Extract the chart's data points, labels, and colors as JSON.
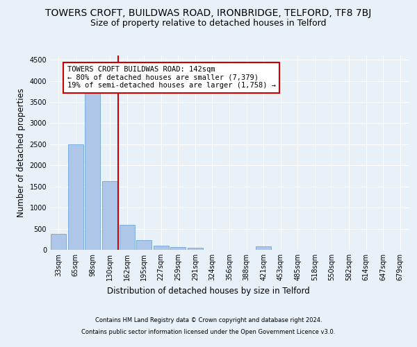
{
  "title": "TOWERS CROFT, BUILDWAS ROAD, IRONBRIDGE, TELFORD, TF8 7BJ",
  "subtitle": "Size of property relative to detached houses in Telford",
  "xlabel": "Distribution of detached houses by size in Telford",
  "ylabel": "Number of detached properties",
  "categories": [
    "33sqm",
    "65sqm",
    "98sqm",
    "130sqm",
    "162sqm",
    "195sqm",
    "227sqm",
    "259sqm",
    "291sqm",
    "324sqm",
    "356sqm",
    "388sqm",
    "421sqm",
    "453sqm",
    "485sqm",
    "518sqm",
    "550sqm",
    "582sqm",
    "614sqm",
    "647sqm",
    "679sqm"
  ],
  "values": [
    370,
    2500,
    3720,
    1620,
    590,
    230,
    105,
    60,
    50,
    0,
    0,
    0,
    75,
    0,
    0,
    0,
    0,
    0,
    0,
    0,
    0
  ],
  "bar_color": "#aec6e8",
  "bar_edge_color": "#5b9bd5",
  "annotation_line1": "TOWERS CROFT BUILDWAS ROAD: 142sqm",
  "annotation_line2": "← 80% of detached houses are smaller (7,379)",
  "annotation_line3": "19% of semi-detached houses are larger (1,758) →",
  "annotation_box_color": "#ffffff",
  "annotation_box_edge_color": "#cc0000",
  "red_line_color": "#cc0000",
  "ylim": [
    0,
    4600
  ],
  "yticks": [
    0,
    500,
    1000,
    1500,
    2000,
    2500,
    3000,
    3500,
    4000,
    4500
  ],
  "footer_line1": "Contains HM Land Registry data © Crown copyright and database right 2024.",
  "footer_line2": "Contains public sector information licensed under the Open Government Licence v3.0.",
  "background_color": "#e8f0f8",
  "plot_bg_color": "#e8f0f8",
  "grid_color": "#ffffff",
  "title_fontsize": 10,
  "subtitle_fontsize": 9,
  "axis_label_fontsize": 8.5,
  "tick_fontsize": 7,
  "annotation_fontsize": 7.5,
  "footer_fontsize": 6
}
